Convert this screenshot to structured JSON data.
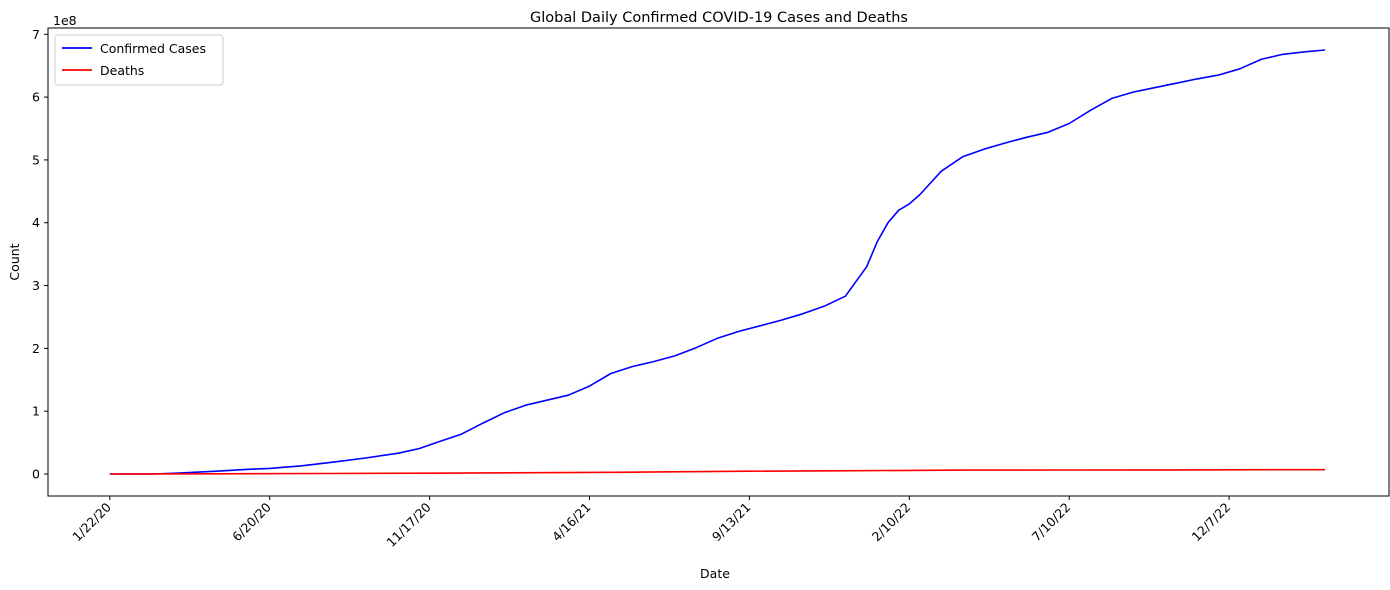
{
  "chart_data": {
    "type": "line",
    "title": "Global Daily Confirmed COVID-19 Cases and Deaths",
    "xlabel": "Date",
    "ylabel": "Count",
    "y_offset_label": "1e8",
    "x_tick_labels": [
      "1/22/20",
      "6/20/20",
      "11/17/20",
      "4/16/21",
      "9/13/21",
      "2/10/22",
      "7/10/22",
      "12/7/22"
    ],
    "x_tick_day_index": [
      0,
      150,
      300,
      450,
      600,
      750,
      900,
      1050
    ],
    "x_range_days": [
      -58,
      1200
    ],
    "y_ticks": [
      0,
      1,
      2,
      3,
      4,
      5,
      6,
      7
    ],
    "y_range": [
      -0.35,
      7.1
    ],
    "y_unit_scale": 100000000,
    "grid": false,
    "legend_position": "upper left",
    "series": [
      {
        "name": "Confirmed Cases",
        "color": "#0000ff",
        "x_days": [
          0,
          40,
          60,
          100,
          130,
          150,
          180,
          210,
          240,
          270,
          290,
          310,
          330,
          350,
          370,
          390,
          410,
          430,
          450,
          470,
          490,
          510,
          530,
          550,
          570,
          590,
          610,
          630,
          650,
          670,
          690,
          710,
          720,
          730,
          740,
          750,
          760,
          780,
          800,
          820,
          840,
          860,
          880,
          900,
          920,
          940,
          960,
          980,
          1000,
          1020,
          1040,
          1060,
          1080,
          1100,
          1120,
          1140
        ],
        "values": [
          0.0,
          0.001,
          0.012,
          0.045,
          0.075,
          0.09,
          0.13,
          0.19,
          0.255,
          0.33,
          0.405,
          0.52,
          0.635,
          0.81,
          0.975,
          1.095,
          1.175,
          1.255,
          1.4,
          1.6,
          1.71,
          1.79,
          1.88,
          2.01,
          2.16,
          2.27,
          2.36,
          2.45,
          2.55,
          2.67,
          2.83,
          3.3,
          3.7,
          4.0,
          4.2,
          4.3,
          4.45,
          4.82,
          5.05,
          5.17,
          5.27,
          5.36,
          5.44,
          5.58,
          5.79,
          5.98,
          6.08,
          6.15,
          6.22,
          6.29,
          6.35,
          6.45,
          6.6,
          6.68,
          6.72,
          6.75
        ]
      },
      {
        "name": "Deaths",
        "color": "#ff0000",
        "x_days": [
          0,
          100,
          200,
          300,
          400,
          500,
          600,
          700,
          800,
          900,
          1000,
          1100,
          1140
        ],
        "values": [
          0.0,
          0.004,
          0.008,
          0.013,
          0.021,
          0.031,
          0.044,
          0.052,
          0.062,
          0.064,
          0.066,
          0.068,
          0.069
        ]
      }
    ]
  }
}
